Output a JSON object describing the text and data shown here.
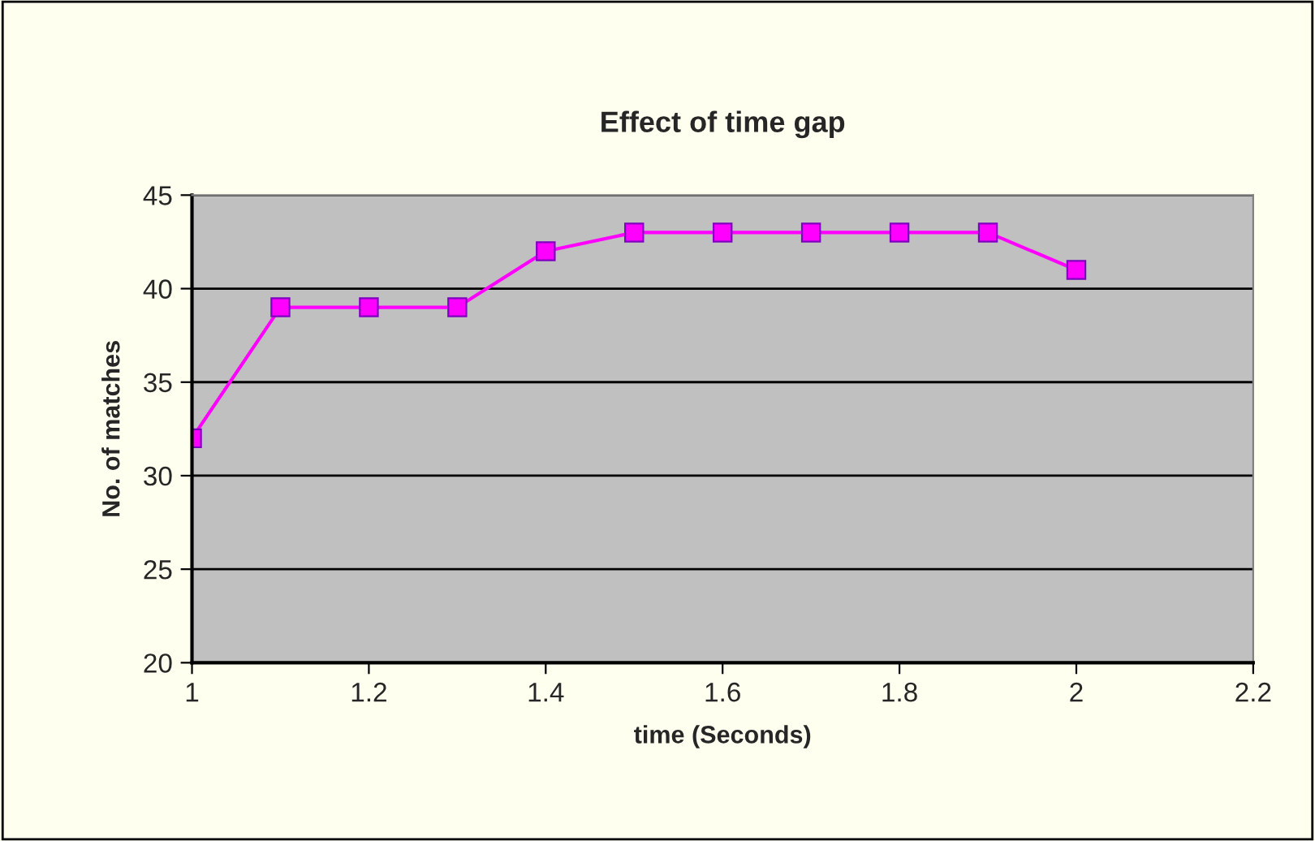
{
  "chart_data": {
    "type": "line",
    "title": "Effect of time gap",
    "xlabel": "time (Seconds)",
    "ylabel": "No. of matches",
    "x": [
      1.0,
      1.1,
      1.2,
      1.3,
      1.4,
      1.5,
      1.6,
      1.7,
      1.8,
      1.9,
      2.0
    ],
    "series": [
      {
        "color": "#ff00ff",
        "values": [
          32,
          39,
          39,
          39,
          42,
          43,
          43,
          43,
          43,
          43,
          41
        ]
      }
    ],
    "xlim": [
      1,
      2.2
    ],
    "xticks": [
      1,
      1.2,
      1.4,
      1.6,
      1.8,
      2,
      2.2
    ],
    "ylim": [
      20,
      45
    ],
    "yticks": [
      20,
      25,
      30,
      35,
      40,
      45
    ],
    "grid": "y",
    "marker": "square",
    "line_style": "solid"
  }
}
